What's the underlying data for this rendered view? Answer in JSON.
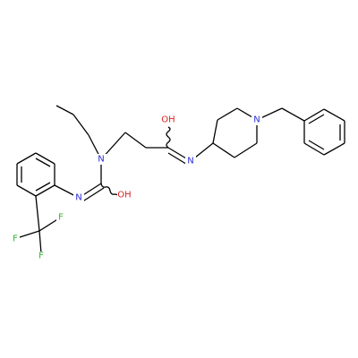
{
  "atom_labels": [
    "OH",
    "N",
    "N",
    "N",
    "N",
    "OH",
    "F",
    "F",
    "F"
  ]
}
